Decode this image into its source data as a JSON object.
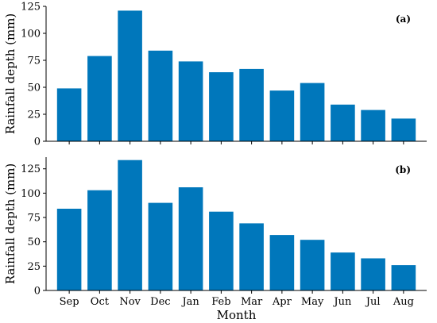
{
  "chart_data": [
    {
      "type": "bar",
      "panel_label": "(a)",
      "categories": [
        "Sep",
        "Oct",
        "Nov",
        "Dec",
        "Jan",
        "Feb",
        "Mar",
        "Apr",
        "May",
        "Jun",
        "Jul",
        "Aug"
      ],
      "values": [
        49,
        79,
        121,
        84,
        74,
        64,
        67,
        47,
        54,
        34,
        29,
        21
      ],
      "ylabel": "Rainfall depth (mm)",
      "xlabel": "",
      "ylim": [
        0,
        125
      ],
      "yticks": [
        "0",
        "25",
        "50",
        "75",
        "100",
        "125"
      ],
      "show_xticklabels": false,
      "grid": false,
      "bar_color": "#0077bb"
    },
    {
      "type": "bar",
      "panel_label": "(b)",
      "categories": [
        "Sep",
        "Oct",
        "Nov",
        "Dec",
        "Jan",
        "Feb",
        "Mar",
        "Apr",
        "May",
        "Jun",
        "Jul",
        "Aug"
      ],
      "values": [
        84,
        103,
        134,
        90,
        106,
        81,
        69,
        57,
        52,
        39,
        33,
        26
      ],
      "ylabel": "Rainfall depth (mm)",
      "xlabel": "Month",
      "ylim": [
        0,
        137
      ],
      "yticks": [
        "0",
        "25",
        "50",
        "75",
        "100",
        "125"
      ],
      "show_xticklabels": true,
      "grid": false,
      "bar_color": "#0077bb"
    }
  ]
}
